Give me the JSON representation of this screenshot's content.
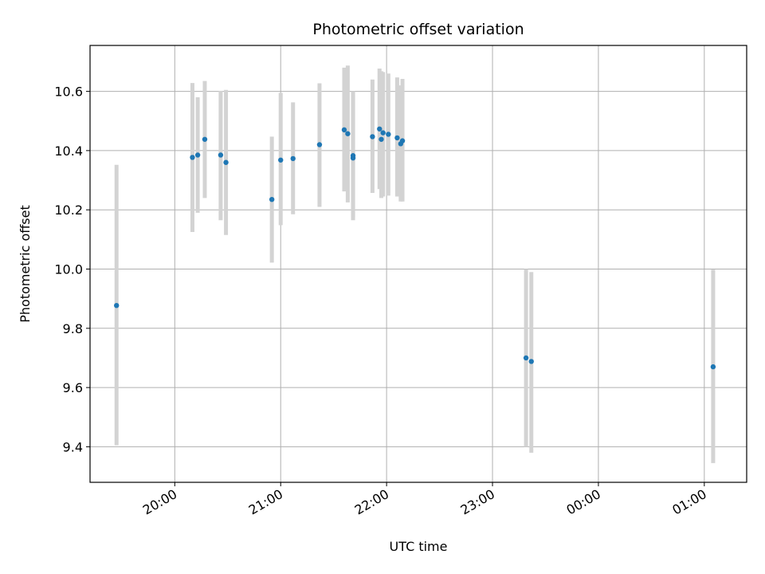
{
  "chart_data": {
    "type": "scatter",
    "title": "Photometric offset variation",
    "xlabel": "UTC time",
    "ylabel": "Photometric offset",
    "grid": true,
    "xlim": [
      "19:12",
      "01:24"
    ],
    "ylim": [
      9.28,
      10.755
    ],
    "x_ticks": [
      "20:00",
      "21:00",
      "22:00",
      "23:00",
      "00:00",
      "01:00"
    ],
    "y_ticks": [
      9.4,
      9.6,
      9.8,
      10.0,
      10.2,
      10.4,
      10.6
    ],
    "point_color": "#1f77b4",
    "errorbar_color": "#d3d3d3",
    "points": [
      {
        "x": "19:27",
        "y": 9.877,
        "ylow": 9.405,
        "yhigh": 10.352
      },
      {
        "x": "20:10",
        "y": 10.377,
        "ylow": 10.125,
        "yhigh": 10.628
      },
      {
        "x": "20:13",
        "y": 10.385,
        "ylow": 10.19,
        "yhigh": 10.58
      },
      {
        "x": "20:17",
        "y": 10.438,
        "ylow": 10.24,
        "yhigh": 10.635
      },
      {
        "x": "20:26",
        "y": 10.385,
        "ylow": 10.165,
        "yhigh": 10.602
      },
      {
        "x": "20:29",
        "y": 10.36,
        "ylow": 10.115,
        "yhigh": 10.605
      },
      {
        "x": "20:55",
        "y": 10.235,
        "ylow": 10.022,
        "yhigh": 10.447
      },
      {
        "x": "21:00",
        "y": 10.368,
        "ylow": 10.148,
        "yhigh": 10.595
      },
      {
        "x": "21:07",
        "y": 10.373,
        "ylow": 10.185,
        "yhigh": 10.563
      },
      {
        "x": "21:22",
        "y": 10.42,
        "ylow": 10.21,
        "yhigh": 10.627
      },
      {
        "x": "21:36",
        "y": 10.47,
        "ylow": 10.262,
        "yhigh": 10.68
      },
      {
        "x": "21:38",
        "y": 10.457,
        "ylow": 10.225,
        "yhigh": 10.687
      },
      {
        "x": "21:41",
        "y": 10.375,
        "ylow": 10.165,
        "yhigh": 10.6
      },
      {
        "x": "21:41",
        "y": 10.383,
        "ylow": 10.175,
        "yhigh": 10.59
      },
      {
        "x": "21:52",
        "y": 10.447,
        "ylow": 10.257,
        "yhigh": 10.64
      },
      {
        "x": "21:56",
        "y": 10.473,
        "ylow": 10.27,
        "yhigh": 10.677
      },
      {
        "x": "21:57",
        "y": 10.438,
        "ylow": 10.24,
        "yhigh": 10.668
      },
      {
        "x": "21:58",
        "y": 10.46,
        "ylow": 10.245,
        "yhigh": 10.665
      },
      {
        "x": "22:01",
        "y": 10.455,
        "ylow": 10.248,
        "yhigh": 10.66
      },
      {
        "x": "22:06",
        "y": 10.443,
        "ylow": 10.245,
        "yhigh": 10.647
      },
      {
        "x": "22:08",
        "y": 10.423,
        "ylow": 10.228,
        "yhigh": 10.62
      },
      {
        "x": "22:09",
        "y": 10.433,
        "ylow": 10.228,
        "yhigh": 10.642
      },
      {
        "x": "23:19",
        "y": 9.7,
        "ylow": 9.4,
        "yhigh": 10.0
      },
      {
        "x": "23:22",
        "y": 9.688,
        "ylow": 9.38,
        "yhigh": 9.99
      },
      {
        "x": "01:05",
        "y": 9.67,
        "ylow": 9.345,
        "yhigh": 9.998
      }
    ]
  }
}
